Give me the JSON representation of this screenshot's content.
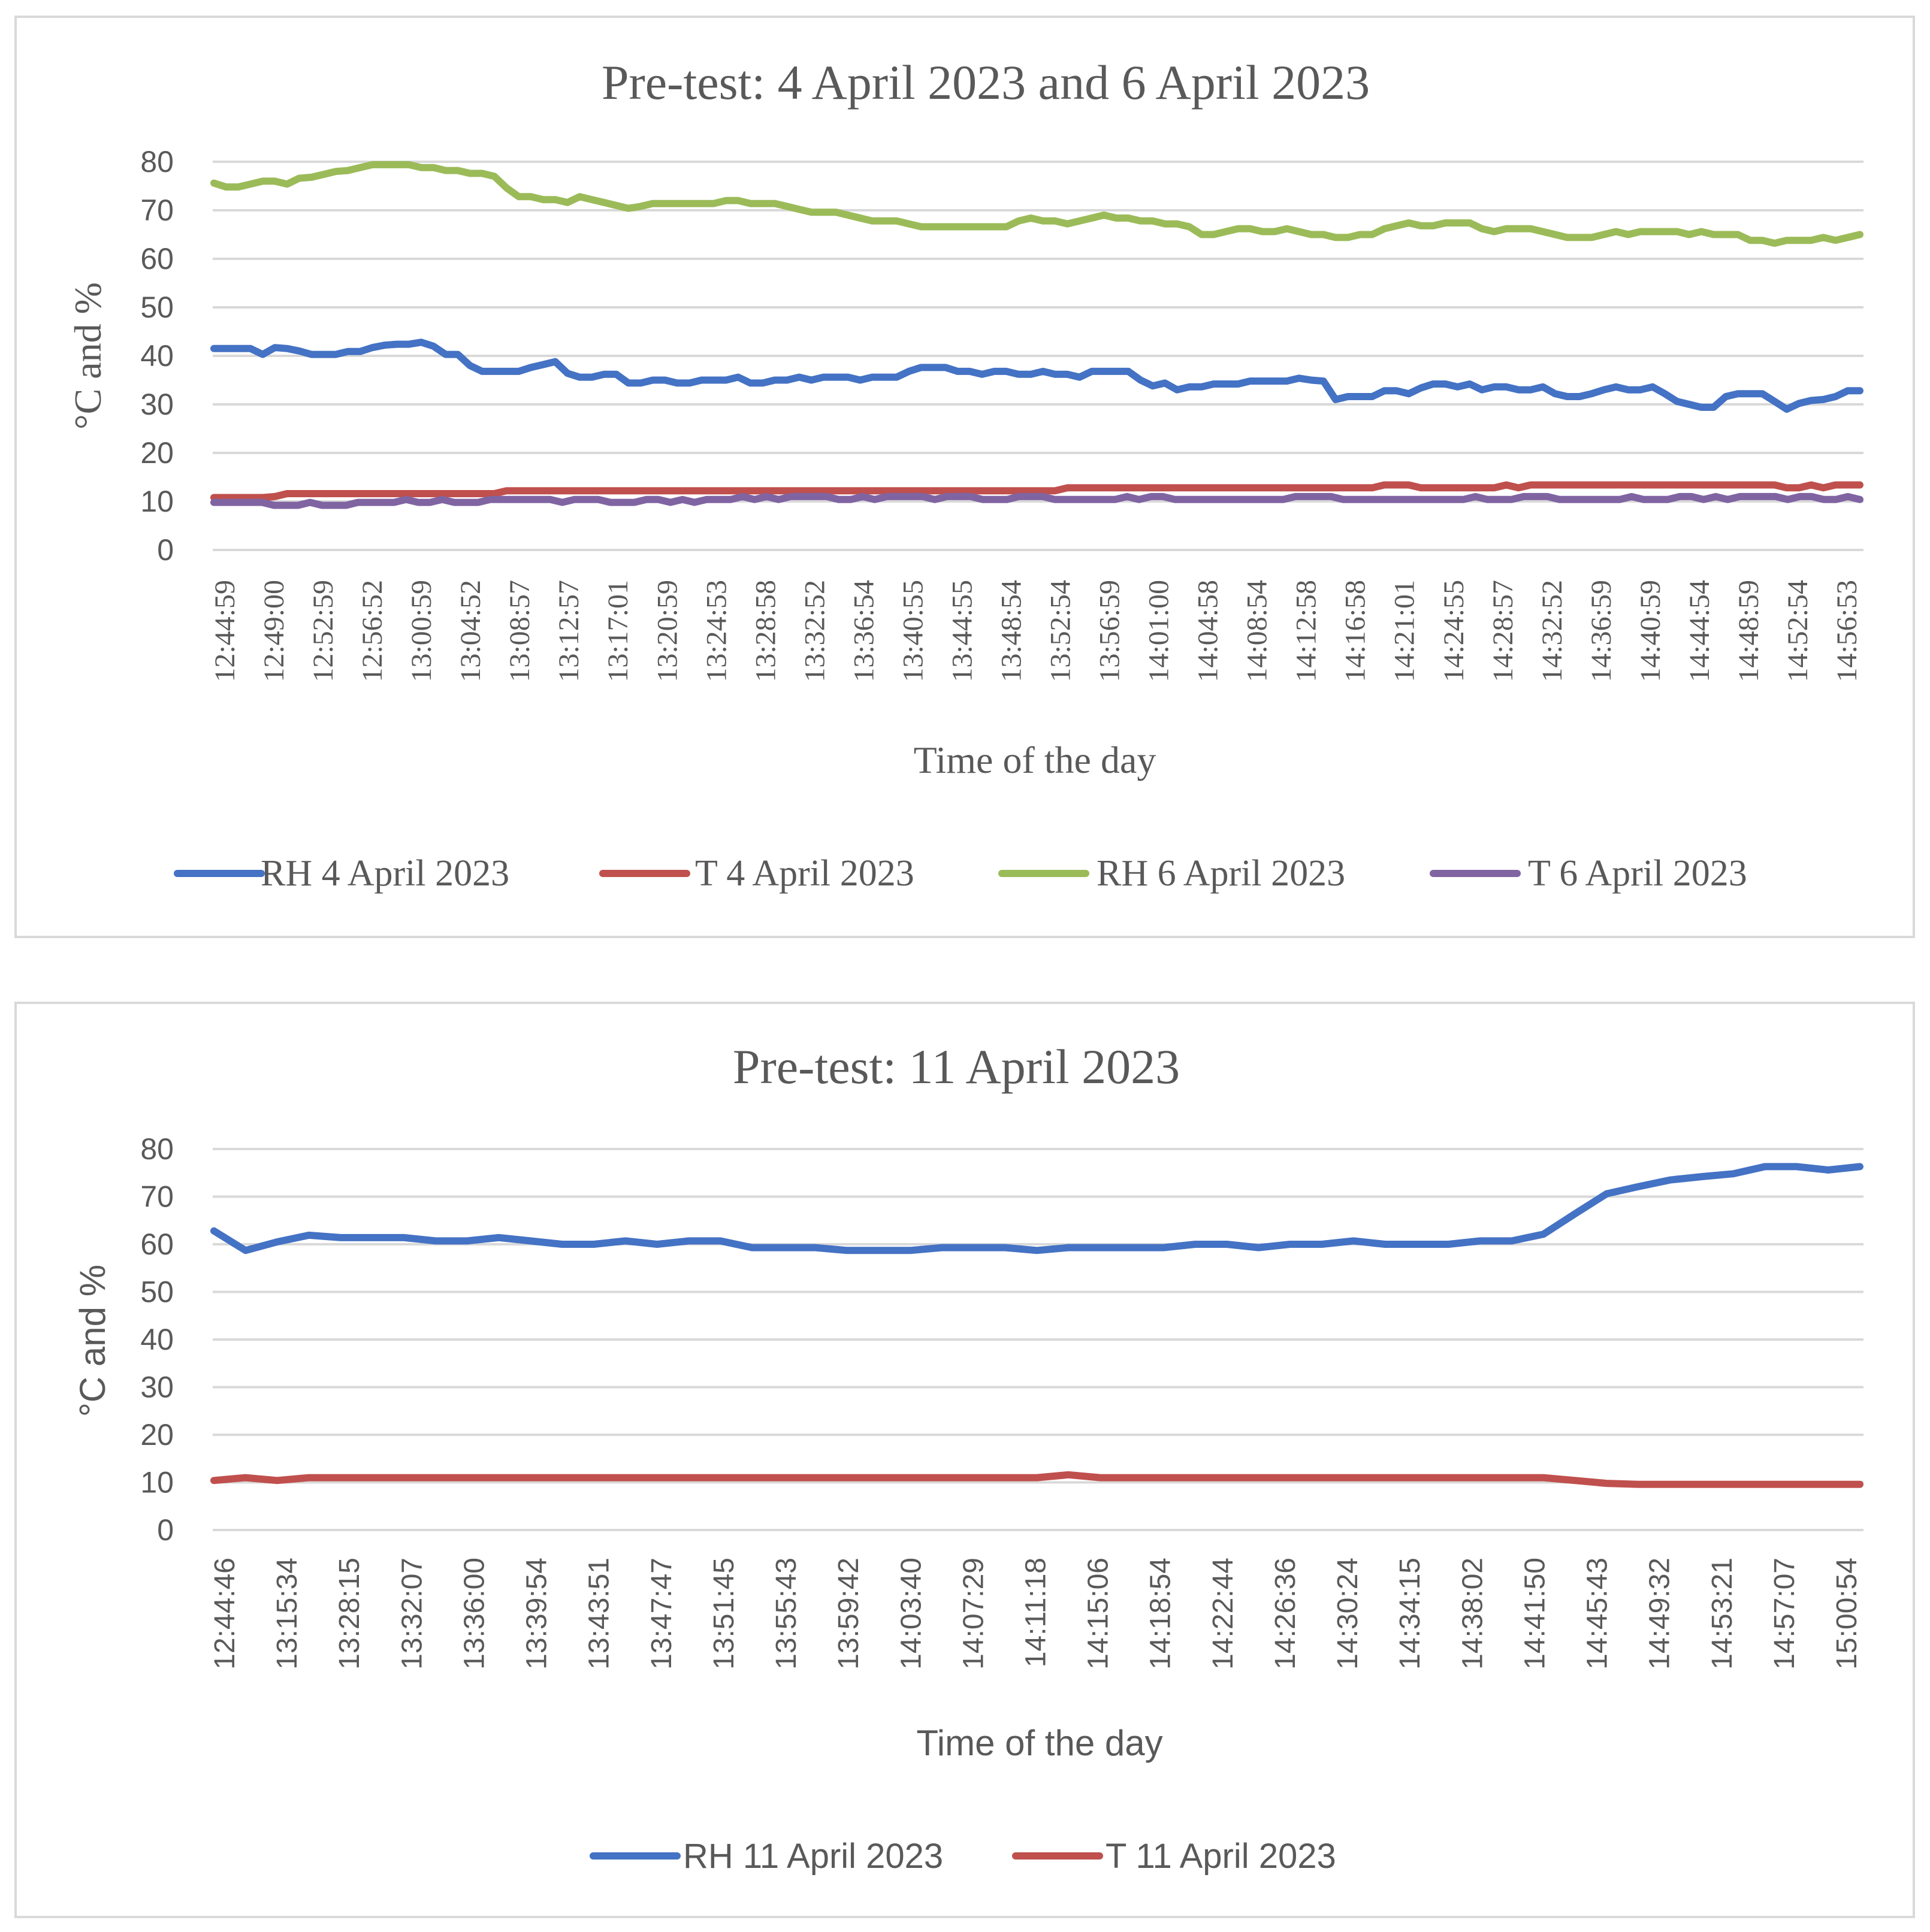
{
  "chart_data": [
    {
      "type": "line",
      "title": "Pre-test: 4 April 2023 and 6 April 2023",
      "xlabel": "Time of the day",
      "ylabel": "°C and %",
      "ylim": [
        0,
        80
      ],
      "yticks": [
        "0",
        "10",
        "20",
        "30",
        "40",
        "50",
        "60",
        "70",
        "80"
      ],
      "grid": true,
      "legend_position": "bottom",
      "x_tick_labels": [
        "12:44:59",
        "12:49:00",
        "12:52:59",
        "12:56:52",
        "13:00:59",
        "13:04:52",
        "13:08:57",
        "13:12:57",
        "13:17:01",
        "13:20:59",
        "13:24:53",
        "13:28:58",
        "13:32:52",
        "13:36:54",
        "13:40:55",
        "13:44:55",
        "13:48:54",
        "13:52:54",
        "13:56:59",
        "14:01:00",
        "14:04:58",
        "14:08:54",
        "14:12:58",
        "14:16:58",
        "14:21:01",
        "14:24:55",
        "14:28:57",
        "14:32:52",
        "14:36:59",
        "14:40:59",
        "14:44:54",
        "14:48:59",
        "14:52:54",
        "14:56:53"
      ],
      "series": [
        {
          "name": "RH 4 April 2023",
          "color": "#4472c4",
          "values": [
            41.5,
            41.5,
            41.5,
            41.5,
            40.3,
            41.7,
            41.5,
            41.0,
            40.3,
            40.3,
            40.3,
            40.9,
            40.9,
            41.7,
            42.2,
            42.4,
            42.4,
            42.8,
            42.0,
            40.3,
            40.3,
            38.0,
            36.8,
            36.8,
            36.8,
            36.8,
            37.6,
            38.2,
            38.8,
            36.4,
            35.6,
            35.6,
            36.2,
            36.2,
            34.4,
            34.4,
            35.0,
            35.0,
            34.4,
            34.4,
            35.0,
            35.0,
            35.0,
            35.6,
            34.4,
            34.4,
            35.0,
            35.0,
            35.6,
            35.0,
            35.6,
            35.6,
            35.6,
            35.0,
            35.6,
            35.6,
            35.6,
            36.8,
            37.6,
            37.6,
            37.6,
            36.8,
            36.8,
            36.2,
            36.8,
            36.8,
            36.2,
            36.2,
            36.8,
            36.2,
            36.2,
            35.6,
            36.8,
            36.8,
            36.8,
            36.8,
            35.0,
            33.8,
            34.4,
            33.0,
            33.6,
            33.6,
            34.2,
            34.2,
            34.2,
            34.8,
            34.8,
            34.8,
            34.8,
            35.4,
            35.0,
            34.8,
            31.0,
            31.6,
            31.6,
            31.6,
            32.8,
            32.8,
            32.2,
            33.4,
            34.2,
            34.2,
            33.6,
            34.2,
            33.0,
            33.6,
            33.6,
            33.0,
            33.0,
            33.6,
            32.2,
            31.6,
            31.6,
            32.2,
            33.0,
            33.6,
            33.0,
            33.0,
            33.6,
            32.2,
            30.6,
            30.0,
            29.4,
            29.4,
            31.6,
            32.2,
            32.2,
            32.2,
            30.6,
            29.0,
            30.2,
            30.8,
            31.0,
            31.6,
            32.8,
            32.8
          ]
        },
        {
          "name": "T 4 April 2023",
          "color": "#c0504d",
          "values": [
            10.8,
            10.8,
            10.8,
            10.8,
            10.8,
            11.0,
            11.6,
            11.6,
            11.6,
            11.6,
            11.6,
            11.6,
            11.6,
            11.6,
            11.6,
            11.6,
            11.6,
            11.6,
            11.6,
            11.6,
            11.6,
            11.6,
            11.6,
            11.6,
            12.2,
            12.2,
            12.2,
            12.2,
            12.2,
            12.2,
            12.2,
            12.2,
            12.2,
            12.2,
            12.2,
            12.2,
            12.2,
            12.2,
            12.2,
            12.2,
            12.2,
            12.2,
            12.2,
            12.2,
            12.2,
            12.2,
            12.2,
            12.2,
            12.2,
            12.2,
            12.2,
            12.2,
            12.2,
            12.2,
            12.2,
            12.2,
            12.2,
            12.2,
            12.2,
            12.2,
            12.2,
            12.2,
            12.2,
            12.2,
            12.2,
            12.2,
            12.2,
            12.2,
            12.2,
            12.2,
            12.8,
            12.8,
            12.8,
            12.8,
            12.8,
            12.8,
            12.8,
            12.8,
            12.8,
            12.8,
            12.8,
            12.8,
            12.8,
            12.8,
            12.8,
            12.8,
            12.8,
            12.8,
            12.8,
            12.8,
            12.8,
            12.8,
            12.8,
            12.8,
            12.8,
            12.8,
            13.4,
            13.4,
            13.4,
            12.8,
            12.8,
            12.8,
            12.8,
            12.8,
            12.8,
            12.8,
            13.4,
            12.8,
            13.4,
            13.4,
            13.4,
            13.4,
            13.4,
            13.4,
            13.4,
            13.4,
            13.4,
            13.4,
            13.4,
            13.4,
            13.4,
            13.4,
            13.4,
            13.4,
            13.4,
            13.4,
            13.4,
            13.4,
            13.4,
            12.8,
            12.8,
            13.4,
            12.8,
            13.4,
            13.4,
            13.4
          ]
        },
        {
          "name": "RH 6 April 2023",
          "color": "#9bbb59",
          "values": [
            75.6,
            74.8,
            74.8,
            75.4,
            76.0,
            76.0,
            75.4,
            76.6,
            76.8,
            77.4,
            78.0,
            78.2,
            78.8,
            79.4,
            79.4,
            79.4,
            79.4,
            78.8,
            78.8,
            78.2,
            78.2,
            77.6,
            77.6,
            77.0,
            74.6,
            72.8,
            72.8,
            72.2,
            72.2,
            71.6,
            72.8,
            72.2,
            71.6,
            71.0,
            70.4,
            70.8,
            71.4,
            71.4,
            71.4,
            71.4,
            71.4,
            71.4,
            72.0,
            72.0,
            71.4,
            71.4,
            71.4,
            70.8,
            70.2,
            69.6,
            69.6,
            69.6,
            69.0,
            68.4,
            67.8,
            67.8,
            67.8,
            67.2,
            66.6,
            66.6,
            66.6,
            66.6,
            66.6,
            66.6,
            66.6,
            66.6,
            67.8,
            68.4,
            67.8,
            67.8,
            67.2,
            67.8,
            68.4,
            69.0,
            68.4,
            68.4,
            67.8,
            67.8,
            67.2,
            67.2,
            66.6,
            65.0,
            65.0,
            65.6,
            66.2,
            66.2,
            65.6,
            65.6,
            66.2,
            65.6,
            65.0,
            65.0,
            64.4,
            64.4,
            65.0,
            65.0,
            66.2,
            66.8,
            67.4,
            66.8,
            66.8,
            67.4,
            67.4,
            67.4,
            66.2,
            65.6,
            66.2,
            66.2,
            66.2,
            65.6,
            65.0,
            64.4,
            64.4,
            64.4,
            65.0,
            65.6,
            65.0,
            65.6,
            65.6,
            65.6,
            65.6,
            65.0,
            65.6,
            65.0,
            65.0,
            65.0,
            63.8,
            63.8,
            63.2,
            63.8,
            63.8,
            63.8,
            64.4,
            63.8,
            64.4,
            65.0
          ]
        },
        {
          "name": "T 6 April 2023",
          "color": "#8064a2",
          "values": [
            9.8,
            9.8,
            9.8,
            9.8,
            9.8,
            9.2,
            9.2,
            9.2,
            9.8,
            9.2,
            9.2,
            9.2,
            9.8,
            9.8,
            9.8,
            9.8,
            10.4,
            9.8,
            9.8,
            10.4,
            9.8,
            9.8,
            9.8,
            10.4,
            10.4,
            10.4,
            10.4,
            10.4,
            10.4,
            9.8,
            10.4,
            10.4,
            10.4,
            9.8,
            9.8,
            9.8,
            10.4,
            10.4,
            9.8,
            10.4,
            9.8,
            10.4,
            10.4,
            10.4,
            11.0,
            10.4,
            11.0,
            10.4,
            11.0,
            11.0,
            11.0,
            11.0,
            10.4,
            10.4,
            11.0,
            10.4,
            11.0,
            11.0,
            11.0,
            11.0,
            10.4,
            11.0,
            11.0,
            11.0,
            10.4,
            10.4,
            10.4,
            11.0,
            11.0,
            11.0,
            10.4,
            10.4,
            10.4,
            10.4,
            10.4,
            10.4,
            11.0,
            10.4,
            11.0,
            11.0,
            10.4,
            10.4,
            10.4,
            10.4,
            10.4,
            10.4,
            10.4,
            10.4,
            10.4,
            10.4,
            11.0,
            11.0,
            11.0,
            11.0,
            10.4,
            10.4,
            10.4,
            10.4,
            10.4,
            10.4,
            10.4,
            10.4,
            10.4,
            10.4,
            10.4,
            11.0,
            10.4,
            10.4,
            10.4,
            11.0,
            11.0,
            11.0,
            10.4,
            10.4,
            10.4,
            10.4,
            10.4,
            10.4,
            11.0,
            10.4,
            10.4,
            10.4,
            11.0,
            11.0,
            10.4,
            11.0,
            10.4,
            11.0,
            11.0,
            11.0,
            11.0,
            10.4,
            11.0,
            11.0,
            10.4,
            10.4,
            11.0,
            10.4
          ]
        }
      ]
    },
    {
      "type": "line",
      "title": "Pre-test: 11 April 2023",
      "xlabel": "Time of the day",
      "ylabel": "°C and %",
      "ylim": [
        0,
        80
      ],
      "yticks": [
        "0",
        "10",
        "20",
        "30",
        "40",
        "50",
        "60",
        "70",
        "80"
      ],
      "grid": true,
      "legend_position": "bottom",
      "x_tick_labels": [
        "12:44:46",
        "13:15:34",
        "13:28:15",
        "13:32:07",
        "13:36:00",
        "13:39:54",
        "13:43:51",
        "13:47:47",
        "13:51:45",
        "13:55:43",
        "13:59:42",
        "14:03:40",
        "14:07:29",
        "14:11:18",
        "14:15:06",
        "14:18:54",
        "14:22:44",
        "14:26:36",
        "14:30:24",
        "14:34:15",
        "14:38:02",
        "14:41:50",
        "14:45:43",
        "14:49:32",
        "14:53:21",
        "14:57:07",
        "15:00:54"
      ],
      "series": [
        {
          "name": "RH 11 April 2023",
          "color": "#4472c4",
          "values": [
            62.8,
            58.7,
            60.5,
            61.9,
            61.4,
            61.4,
            61.4,
            60.7,
            60.7,
            61.4,
            60.7,
            60.0,
            60.0,
            60.7,
            60.0,
            60.7,
            60.7,
            59.3,
            59.3,
            59.3,
            58.7,
            58.7,
            58.7,
            59.3,
            59.3,
            59.3,
            58.7,
            59.3,
            59.3,
            59.3,
            59.3,
            60.0,
            60.0,
            59.3,
            60.0,
            60.0,
            60.7,
            60.0,
            60.0,
            60.0,
            60.7,
            60.7,
            62.1,
            66.4,
            70.6,
            72.1,
            73.5,
            74.2,
            74.8,
            76.3,
            76.3,
            75.6,
            76.3
          ]
        },
        {
          "name": "T 11 April 2023",
          "color": "#c0504d",
          "values": [
            10.4,
            11.0,
            10.4,
            11.0,
            11.0,
            11.0,
            11.0,
            11.0,
            11.0,
            11.0,
            11.0,
            11.0,
            11.0,
            11.0,
            11.0,
            11.0,
            11.0,
            11.0,
            11.0,
            11.0,
            11.0,
            11.0,
            11.0,
            11.0,
            11.0,
            11.0,
            11.0,
            11.6,
            11.0,
            11.0,
            11.0,
            11.0,
            11.0,
            11.0,
            11.0,
            11.0,
            11.0,
            11.0,
            11.0,
            11.0,
            11.0,
            11.0,
            11.0,
            10.4,
            9.8,
            9.6,
            9.6,
            9.6,
            9.6,
            9.6,
            9.6,
            9.6,
            9.6
          ]
        }
      ]
    }
  ]
}
